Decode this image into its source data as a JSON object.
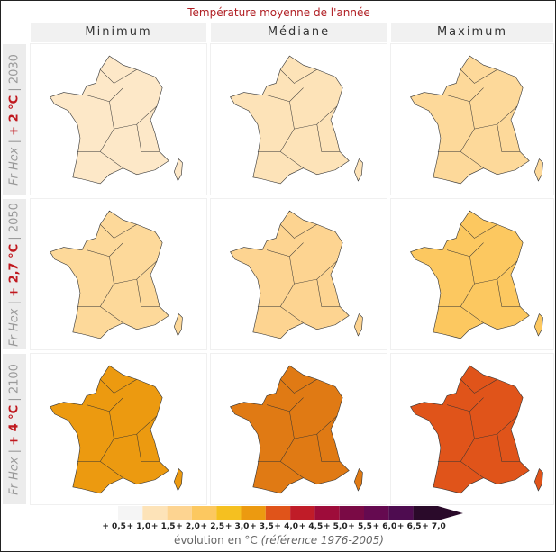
{
  "title": "Température moyenne de l'année",
  "columns": [
    "Minimum",
    "Médiane",
    "Maximum"
  ],
  "rows": [
    {
      "prefix": "Fr Hex",
      "sep": " | ",
      "warming": "+ 2 °C",
      "year": "2030"
    },
    {
      "prefix": "Fr Hex",
      "sep": " | ",
      "warming": "+ 2,7 °C",
      "year": "2050"
    },
    {
      "prefix": "Fr Hex",
      "sep": " | ",
      "warming": "+ 4 °C",
      "year": "2100"
    }
  ],
  "panel_fill": [
    [
      "#fde8c8",
      "#fde3b8",
      "#fdd99a"
    ],
    [
      "#fdd99a",
      "#fdd491",
      "#fcc860"
    ],
    [
      "#ec9a10",
      "#e07a14",
      "#e0541a"
    ]
  ],
  "legend": {
    "colors": [
      "#f5f5f5",
      "#fde3b8",
      "#fdd491",
      "#fcc860",
      "#f5c020",
      "#ec9a10",
      "#e0541a",
      "#c01c28",
      "#9e0c3a",
      "#7a0a45",
      "#650a50",
      "#4e0c50",
      "#2a0a2a"
    ],
    "ticks": [
      "+ 0,5",
      "+ 1,0",
      "+ 1,5",
      "+ 2,0",
      "+ 2,5",
      "+ 3,0",
      "+ 3,5",
      "+ 4,0",
      "+ 4,5",
      "+ 5,0",
      "+ 5,5",
      "+ 6,0",
      "+ 6,5",
      "+ 7,0"
    ],
    "caption": "évolution en °C",
    "caption_ref": "(référence 1976-2005)"
  }
}
